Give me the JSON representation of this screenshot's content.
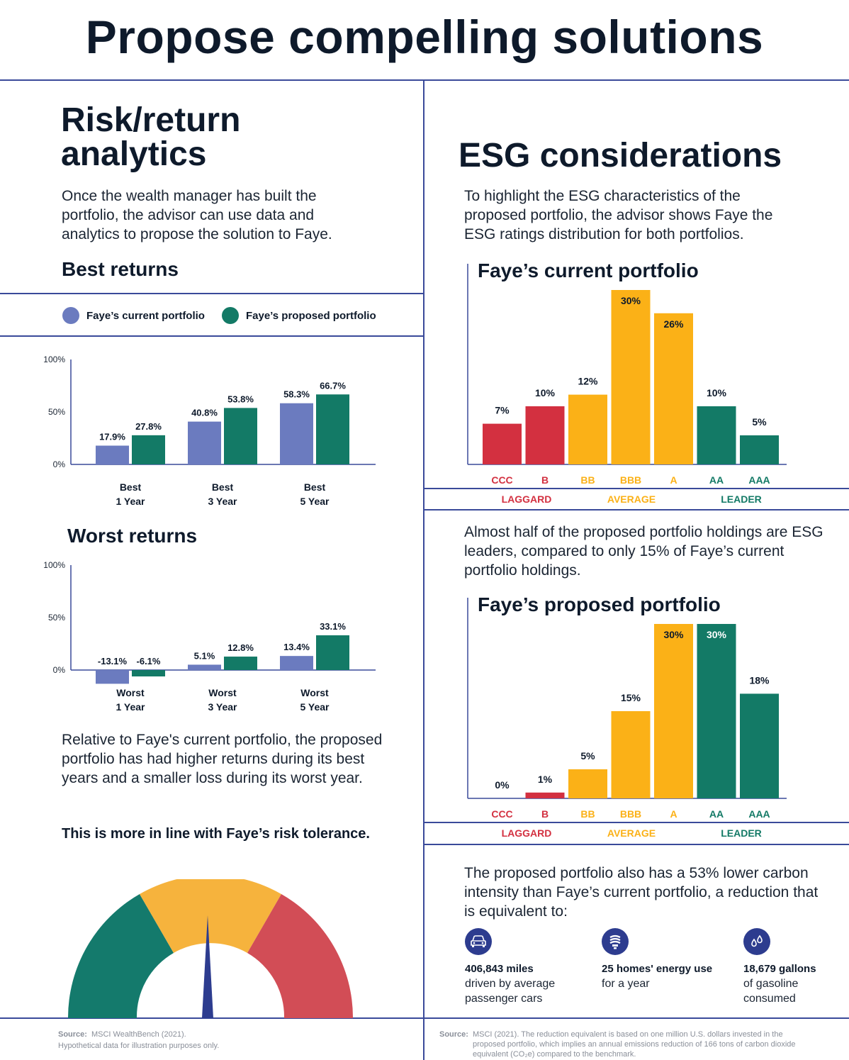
{
  "title": "Propose compelling solutions",
  "left": {
    "heading_line1": "Risk/return",
    "heading_line2": "analytics",
    "intro": "Once the wealth manager has built the portfolio, the advisor can use data and analytics to propose the solution to Faye.",
    "best_title": "Best returns",
    "worst_title": "Worst returns",
    "legend": {
      "current": "Faye’s current portfolio",
      "proposed": "Faye’s proposed portfolio"
    },
    "conclusion": "Relative to Faye's current portfolio, the proposed portfolio has had higher returns during its best years and a smaller loss during its worst year.",
    "emphasis": "This is more in line with Faye’s risk tolerance.",
    "source_label": "Source:",
    "source_text": "MSCI WealthBench (2021).",
    "source_note": "Hypothetical data for illustration purposes only."
  },
  "right": {
    "heading": "ESG considerations",
    "intro": "To highlight the ESG characteristics of the proposed portfolio, the advisor shows Faye the ESG ratings distribution for both portfolios.",
    "middle_text": "Almost half of the proposed portfolio holdings are ESG leaders, compared to only 15% of Faye’s current portfolio holdings.",
    "carbon_text": "The proposed portfolio also has a 53% lower carbon intensity than Faye’s current portfolio, a reduction that is equivalent to:",
    "equivalents": [
      {
        "icon": "car-icon",
        "title": "406,843 miles",
        "desc1": "driven by average",
        "desc2": "passenger cars"
      },
      {
        "icon": "lightbulb-icon",
        "title": "25 homes' energy use",
        "desc1": "for a year",
        "desc2": ""
      },
      {
        "icon": "droplets-icon",
        "title": "18,679 gallons",
        "desc1": "of gasoline",
        "desc2": "consumed"
      }
    ],
    "source_label": "Source:",
    "source_line1": "MSCI (2021). The reduction equivalent is based on one million U.S. dollars invested in the",
    "source_line2": "proposed portfolio, which implies an annual emissions reduction of 166 tons of carbon dioxide",
    "source_line3": "equivalent (CO₂e) compared to the benchmark."
  },
  "colors": {
    "current": "#6b7bbf",
    "proposed": "#137a66",
    "laggard": "#d33040",
    "average": "#fbb117",
    "leader": "#137a66",
    "rule": "#3a4a9a",
    "gauge_green": "#147a6c",
    "gauge_yellow": "#f6b33d",
    "gauge_red": "#d24d56",
    "needle": "#2d3c8f"
  },
  "chart_data": [
    {
      "type": "bar",
      "title": "Best returns",
      "categories": [
        [
          "Best",
          "1 Year"
        ],
        [
          "Best",
          "3 Year"
        ],
        [
          "Best",
          "5 Year"
        ]
      ],
      "series": [
        {
          "name": "Faye’s current portfolio",
          "values": [
            17.9,
            40.8,
            58.3
          ],
          "labels": [
            "17.9%",
            "40.8%",
            "58.3%"
          ]
        },
        {
          "name": "Faye’s proposed portfolio",
          "values": [
            27.8,
            53.8,
            66.7
          ],
          "labels": [
            "27.8%",
            "53.8%",
            "66.7%"
          ]
        }
      ],
      "ylim": [
        0,
        100
      ],
      "yticks": [
        0,
        50,
        100
      ],
      "ytick_labels": [
        "0%",
        "50%",
        "100%"
      ]
    },
    {
      "type": "bar",
      "title": "Worst returns",
      "categories": [
        [
          "Worst",
          "1 Year"
        ],
        [
          "Worst",
          "3 Year"
        ],
        [
          "Worst",
          "5 Year"
        ]
      ],
      "series": [
        {
          "name": "Faye’s current portfolio",
          "values": [
            -13.1,
            5.1,
            13.4
          ],
          "labels": [
            "-13.1%",
            "5.1%",
            "13.4%"
          ]
        },
        {
          "name": "Faye’s proposed portfolio",
          "values": [
            -6.1,
            12.8,
            33.1
          ],
          "labels": [
            "-6.1%",
            "12.8%",
            "33.1%"
          ]
        }
      ],
      "ylim": [
        0,
        100
      ],
      "yticks": [
        0,
        50,
        100
      ],
      "ytick_labels": [
        "0%",
        "50%",
        "100%"
      ]
    },
    {
      "type": "bar",
      "title": "Faye’s current portfolio",
      "categories": [
        "CCC",
        "B",
        "BB",
        "BBB",
        "A",
        "AA",
        "AAA"
      ],
      "values": [
        7,
        10,
        12,
        30,
        26,
        10,
        5
      ],
      "labels": [
        "7%",
        "10%",
        "12%",
        "30%",
        "26%",
        "10%",
        "5%"
      ],
      "groups": [
        "LAGGARD",
        "AVERAGE",
        "LEADER"
      ],
      "group_of": [
        "laggard",
        "laggard",
        "average",
        "average",
        "average",
        "leader",
        "leader"
      ],
      "ylim": [
        0,
        30
      ]
    },
    {
      "type": "bar",
      "title": "Faye’s proposed portfolio",
      "categories": [
        "CCC",
        "B",
        "BB",
        "BBB",
        "A",
        "AA",
        "AAA"
      ],
      "values": [
        0,
        1,
        5,
        15,
        30,
        30,
        18
      ],
      "labels": [
        "0%",
        "1%",
        "5%",
        "15%",
        "30%",
        "30%",
        "18%"
      ],
      "groups": [
        "LAGGARD",
        "AVERAGE",
        "LEADER"
      ],
      "group_of": [
        "laggard",
        "laggard",
        "average",
        "average",
        "average",
        "leader",
        "leader"
      ],
      "ylim": [
        0,
        30
      ]
    }
  ]
}
